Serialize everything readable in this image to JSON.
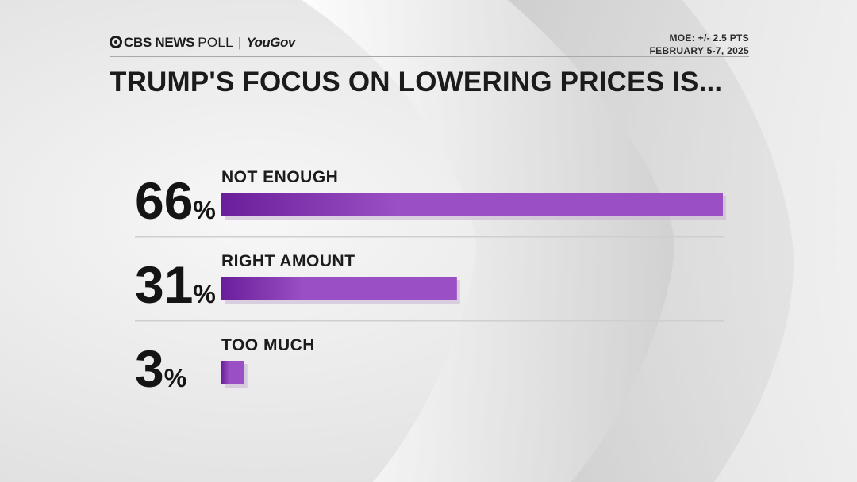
{
  "header": {
    "brand_primary": "CBS NEWS",
    "brand_secondary": "POLL",
    "brand_partner": "YouGov",
    "moe": "MOE: +/- 2.5 PTS",
    "dates": "FEBRUARY 5-7, 2025"
  },
  "colors": {
    "bar_dark": "#6a1e9a",
    "bar_light": "#9b4fc4",
    "bar_shadow": "#c9b6d6",
    "divider": "#cfcfcf"
  },
  "chart_data": {
    "type": "bar",
    "orientation": "horizontal",
    "title": "TRUMP'S FOCUS ON LOWERING PRICES IS...",
    "categories": [
      "NOT ENOUGH",
      "RIGHT AMOUNT",
      "TOO MUCH"
    ],
    "values": [
      66,
      31,
      3
    ],
    "value_suffix": "%",
    "xlim": [
      0,
      66
    ],
    "grid": false,
    "legend": "none"
  }
}
